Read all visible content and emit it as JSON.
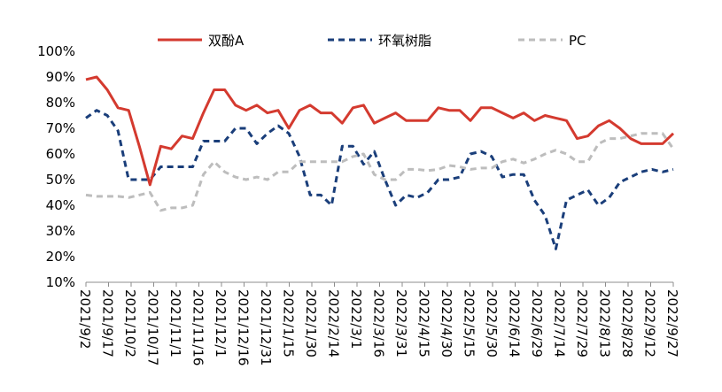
{
  "chart_data": {
    "type": "line",
    "title": "",
    "xlabel": "",
    "ylabel": "",
    "ylim": [
      0.1,
      1.0
    ],
    "y_ticks": [
      "10%",
      "20%",
      "30%",
      "40%",
      "50%",
      "60%",
      "70%",
      "80%",
      "90%",
      "100%"
    ],
    "x_tick_labels": [
      "2021/9/2",
      "2021/9/17",
      "2021/10/2",
      "2021/10/17",
      "2021/11/1",
      "2021/11/16",
      "2021/12/1",
      "2021/12/16",
      "2021/12/31",
      "2022/1/15",
      "2022/1/30",
      "2022/2/14",
      "2022/3/1",
      "2022/3/16",
      "2022/3/31",
      "2022/4/15",
      "2022/4/30",
      "2022/5/15",
      "2022/5/30",
      "2022/6/14",
      "2022/6/29",
      "2022/7/14",
      "2022/7/29",
      "2022/8/13",
      "2022/8/28",
      "2022/9/12",
      "2022/9/27"
    ],
    "legend_position": "top",
    "grid": false,
    "series": [
      {
        "name": "双酚A",
        "color": "#d43a2f",
        "style": "solid",
        "values": [
          0.89,
          0.9,
          0.85,
          0.78,
          0.77,
          0.63,
          0.48,
          0.63,
          0.62,
          0.67,
          0.66,
          0.76,
          0.85,
          0.85,
          0.79,
          0.77,
          0.79,
          0.76,
          0.77,
          0.7,
          0.77,
          0.79,
          0.76,
          0.76,
          0.72,
          0.78,
          0.79,
          0.72,
          0.74,
          0.76,
          0.73,
          0.73,
          0.73,
          0.78,
          0.77,
          0.77,
          0.73,
          0.78,
          0.78,
          0.76,
          0.74,
          0.76,
          0.73,
          0.75,
          0.74,
          0.73,
          0.66,
          0.67,
          0.71,
          0.73,
          0.7,
          0.66,
          0.64,
          0.64,
          0.64,
          0.68
        ]
      },
      {
        "name": "环氧树脂",
        "color": "#1a3e7a",
        "style": "dashed",
        "values": [
          0.74,
          0.77,
          0.75,
          0.69,
          0.5,
          0.5,
          0.5,
          0.55,
          0.55,
          0.55,
          0.55,
          0.65,
          0.65,
          0.65,
          0.7,
          0.7,
          0.64,
          0.68,
          0.71,
          0.68,
          0.59,
          0.44,
          0.44,
          0.4,
          0.63,
          0.63,
          0.56,
          0.61,
          0.5,
          0.4,
          0.44,
          0.43,
          0.45,
          0.5,
          0.5,
          0.51,
          0.6,
          0.61,
          0.59,
          0.51,
          0.52,
          0.52,
          0.42,
          0.36,
          0.23,
          0.42,
          0.44,
          0.46,
          0.4,
          0.43,
          0.49,
          0.51,
          0.53,
          0.54,
          0.53,
          0.54
        ]
      },
      {
        "name": "PC",
        "color": "#bdbdbd",
        "style": "dashed",
        "values": [
          0.44,
          0.435,
          0.435,
          0.435,
          0.43,
          0.44,
          0.45,
          0.38,
          0.39,
          0.39,
          0.4,
          0.52,
          0.57,
          0.53,
          0.51,
          0.5,
          0.51,
          0.5,
          0.53,
          0.53,
          0.57,
          0.57,
          0.57,
          0.57,
          0.57,
          0.59,
          0.6,
          0.52,
          0.5,
          0.5,
          0.54,
          0.54,
          0.535,
          0.54,
          0.555,
          0.55,
          0.54,
          0.545,
          0.545,
          0.57,
          0.58,
          0.565,
          0.58,
          0.6,
          0.615,
          0.6,
          0.57,
          0.57,
          0.64,
          0.66,
          0.66,
          0.67,
          0.68,
          0.68,
          0.68,
          0.62
        ]
      }
    ]
  }
}
